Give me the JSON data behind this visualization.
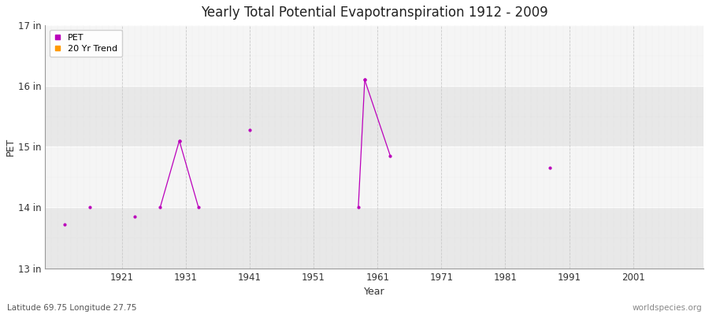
{
  "title": "Yearly Total Potential Evapotranspiration 1912 - 2009",
  "xlabel": "Year",
  "ylabel": "PET",
  "footer_left": "Latitude 69.75 Longitude 27.75",
  "footer_right": "worldspecies.org",
  "ylim": [
    13,
    17
  ],
  "xlim": [
    1909,
    2012
  ],
  "ytick_labels": [
    "13 in",
    "14 in",
    "15 in",
    "16 in",
    "17 in"
  ],
  "ytick_values": [
    13,
    14,
    15,
    16,
    17
  ],
  "xtick_values": [
    1921,
    1931,
    1941,
    1951,
    1961,
    1971,
    1981,
    1991,
    2001
  ],
  "pet_color": "#bb00bb",
  "trend_color": "#ff9900",
  "bg_color": "#ffffff",
  "plot_bg_color": "#f5f5f5",
  "band_colors": [
    "#e8e8e8",
    "#f5f5f5"
  ],
  "grid_color": "#cccccc",
  "legend_items": [
    "PET",
    "20 Yr Trend"
  ],
  "isolated_points": {
    "years": [
      1912,
      1916,
      1923,
      1941,
      1988
    ],
    "values": [
      13.72,
      14.0,
      13.85,
      15.28,
      14.65
    ]
  },
  "segment_groups": [
    {
      "years": [
        1927,
        1930
      ],
      "values": [
        14.0,
        15.1
      ]
    },
    {
      "years": [
        1930,
        1933
      ],
      "values": [
        15.1,
        14.0
      ]
    },
    {
      "years": [
        1958,
        1959
      ],
      "values": [
        14.0,
        16.1
      ]
    },
    {
      "years": [
        1959,
        1963
      ],
      "values": [
        16.1,
        14.85
      ]
    }
  ]
}
